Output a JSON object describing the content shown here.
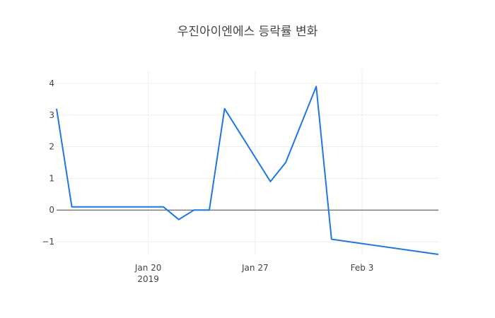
{
  "chart_data": {
    "type": "line",
    "title": "우진아이엔에스 등락률 변화",
    "xlabel": "",
    "ylabel": "",
    "x_range": [
      "2019-01-14",
      "2019-02-08"
    ],
    "ylim": [
      -1.4,
      4.4
    ],
    "x_ticks": [
      {
        "date": "2019-01-20",
        "label": "Jan 20",
        "sublabel": "2019"
      },
      {
        "date": "2019-01-27",
        "label": "Jan 27",
        "sublabel": ""
      },
      {
        "date": "2019-02-03",
        "label": "Feb 3",
        "sublabel": ""
      }
    ],
    "y_ticks": [
      {
        "value": -1,
        "label": "−1"
      },
      {
        "value": 0,
        "label": "0"
      },
      {
        "value": 1,
        "label": "1"
      },
      {
        "value": 2,
        "label": "2"
      },
      {
        "value": 3,
        "label": "3"
      },
      {
        "value": 4,
        "label": "4"
      }
    ],
    "grid": true,
    "zero_line": true,
    "legend": "none",
    "series": [
      {
        "color": "#1f77e4",
        "points": [
          {
            "x": "2019-01-14",
            "y": 3.2
          },
          {
            "x": "2019-01-15",
            "y": 0.1
          },
          {
            "x": "2019-01-21",
            "y": 0.1
          },
          {
            "x": "2019-01-22",
            "y": -0.3
          },
          {
            "x": "2019-01-23",
            "y": 0.0
          },
          {
            "x": "2019-01-24",
            "y": 0.0
          },
          {
            "x": "2019-01-25",
            "y": 3.2
          },
          {
            "x": "2019-01-28",
            "y": 0.9
          },
          {
            "x": "2019-01-29",
            "y": 1.5
          },
          {
            "x": "2019-01-31",
            "y": 3.9
          },
          {
            "x": "2019-02-01",
            "y": -0.92
          },
          {
            "x": "2019-02-08",
            "y": -1.4
          }
        ]
      }
    ]
  }
}
